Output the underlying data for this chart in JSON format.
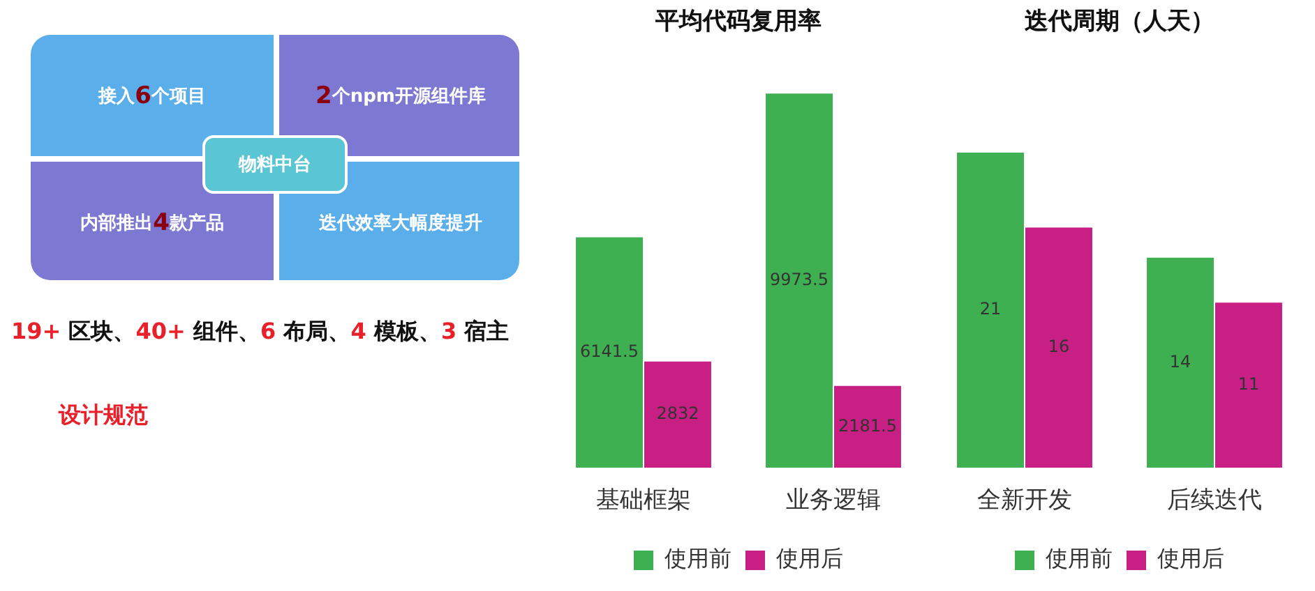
{
  "chart_data": [
    {
      "type": "other",
      "annotations": [
        "接入6个项目",
        "2个npm开源组件库",
        "内部推出4款产品",
        "迭代效率大幅度提升",
        "物料中台",
        "19+ 区块、40+ 组件、6 布局、4 模板、3 宿主",
        "设计规范"
      ]
    },
    {
      "type": "bar",
      "title": "平均代码复用率",
      "categories": [
        "基础框架",
        "业务逻辑"
      ],
      "series": [
        {
          "name": "使用前",
          "color": "#3fb052",
          "values": [
            6141.5,
            9973.5
          ]
        },
        {
          "name": "使用后",
          "color": "#c71f84",
          "values": [
            2832,
            2181.5
          ]
        }
      ],
      "data_labels": true,
      "grid": false,
      "legend": "bottom"
    },
    {
      "type": "bar",
      "title": "迭代周期（人天）",
      "categories": [
        "全新开发",
        "后续迭代"
      ],
      "series": [
        {
          "name": "使用前",
          "color": "#3fb052",
          "values": [
            21,
            14
          ]
        },
        {
          "name": "使用后",
          "color": "#c71f84",
          "values": [
            16,
            11
          ]
        }
      ],
      "data_labels": true,
      "grid": false,
      "legend": "bottom"
    }
  ]
}
